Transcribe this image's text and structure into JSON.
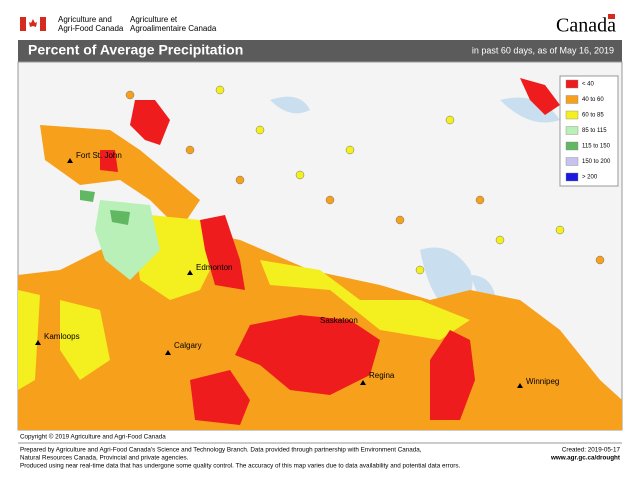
{
  "header": {
    "org_en": [
      "Agriculture and",
      "Agri-Food Canada"
    ],
    "org_fr": [
      "Agriculture et",
      "Agroalimentaire Canada"
    ],
    "wordmark": "Canada"
  },
  "title_bar": {
    "title": "Percent of Average Precipitation",
    "subtitle": "in past 60 days, as of May 16, 2019"
  },
  "legend": [
    {
      "label": "< 40",
      "color": "#ee1c1c"
    },
    {
      "label": "40 to 60",
      "color": "#f7a01c"
    },
    {
      "label": "60 to 85",
      "color": "#f4ef1e"
    },
    {
      "label": "85 to 115",
      "color": "#b8f0b8"
    },
    {
      "label": "115 to 150",
      "color": "#62b862"
    },
    {
      "label": "150 to 200",
      "color": "#c8c3ee"
    },
    {
      "label": "> 200",
      "color": "#1a1ae0"
    }
  ],
  "cities": [
    "Fort St. John",
    "Edmonton",
    "Kamloops",
    "Calgary",
    "Saskatoon",
    "Regina",
    "Winnipeg"
  ],
  "footer": {
    "copyright": "Copyright © 2019 Agriculture and Agri-Food Canada",
    "notes": [
      "Prepared by Agriculture and Agri-Food Canada's Science and Technology Branch. Data provided through partnership with Environment Canada,",
      "Natural Resources Canada, Provincial and private agencies.",
      "Produced using near real-time data that has undergone some quality control. The accuracy of this map varies due to data availability and potential data errors."
    ],
    "created": "Created: 2019-05-17",
    "url": "www.agr.gc.ca/drought"
  }
}
